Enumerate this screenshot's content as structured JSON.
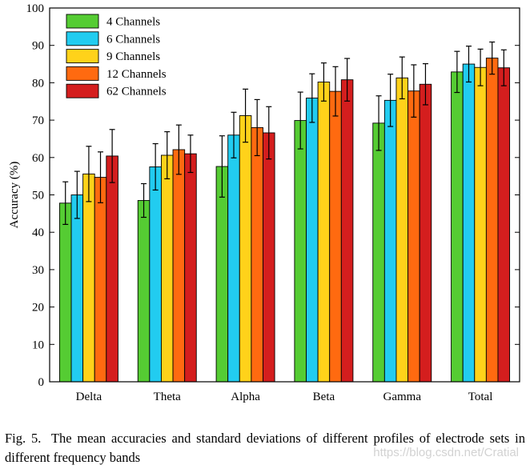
{
  "chart_data": {
    "type": "bar",
    "categories": [
      "Delta",
      "Theta",
      "Alpha",
      "Beta",
      "Gamma",
      "Total"
    ],
    "ylabel": "Accuracy (%)",
    "xlabel": "",
    "ylim": [
      0,
      100
    ],
    "yticks": [
      0,
      10,
      20,
      30,
      40,
      50,
      60,
      70,
      80,
      90,
      100
    ],
    "legend_position": "top-left",
    "series": [
      {
        "name": "4 Channels",
        "color": "#55cc33",
        "values": [
          47.8,
          48.5,
          57.6,
          69.9,
          69.2,
          82.9
        ],
        "errors": [
          5.7,
          4.5,
          8.2,
          7.6,
          7.3,
          5.5
        ]
      },
      {
        "name": "6 Channels",
        "color": "#22ccf0",
        "values": [
          50.0,
          57.5,
          66.0,
          75.9,
          75.3,
          85.0
        ],
        "errors": [
          6.3,
          6.2,
          6.1,
          6.5,
          7.0,
          4.8
        ]
      },
      {
        "name": "9 Channels",
        "color": "#ffd21a",
        "values": [
          55.6,
          60.6,
          71.2,
          80.2,
          81.3,
          84.1
        ],
        "errors": [
          7.4,
          6.3,
          7.1,
          5.1,
          5.6,
          4.9
        ]
      },
      {
        "name": "12 Channels",
        "color": "#ff6a10",
        "values": [
          54.7,
          62.1,
          68.0,
          77.7,
          77.8,
          86.6
        ],
        "errors": [
          6.8,
          6.6,
          7.5,
          6.6,
          7.0,
          4.3
        ]
      },
      {
        "name": "62 Channels",
        "color": "#d41e1e",
        "values": [
          60.4,
          61.0,
          66.6,
          80.8,
          79.6,
          84.0
        ],
        "errors": [
          7.1,
          5.0,
          7.0,
          5.7,
          5.5,
          4.8
        ]
      }
    ]
  },
  "caption": {
    "label": "Fig. 5.",
    "text": "The mean accuracies and standard deviations of different profiles of electrode sets in different frequency bands"
  },
  "watermark": "https://blog.csdn.net/Cratial"
}
